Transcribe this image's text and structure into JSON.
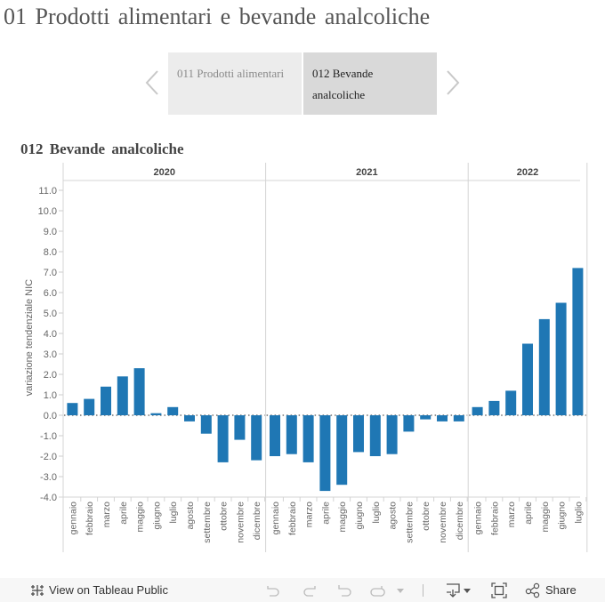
{
  "page": {
    "title": "01 Prodotti alimentari e bevande analcoliche"
  },
  "navigator": {
    "tabs": [
      {
        "label": "011 Prodotti alimentari",
        "active": false
      },
      {
        "label": "012 Bevande analcoliche",
        "active": true
      }
    ],
    "prev_icon": "chevron-left-icon",
    "next_icon": "chevron-right-icon"
  },
  "chart_title": "012 Bevande analcoliche",
  "chart_data": {
    "type": "bar",
    "title": "012 Bevande analcoliche",
    "xlabel": "",
    "ylabel": "variazione tendenziale NIC",
    "ylim": [
      -4.2,
      11.5
    ],
    "yticks": [
      11.0,
      10.0,
      9.0,
      8.0,
      7.0,
      6.0,
      5.0,
      4.0,
      3.0,
      2.0,
      1.0,
      0.0,
      -1.0,
      -2.0,
      -3.0,
      -4.0
    ],
    "ytick_labels": [
      "11.0",
      "10.0",
      "9.0",
      "8.0",
      "7.0",
      "6.0",
      "5.0",
      "4.0",
      "3.0",
      "2.0",
      "1.0",
      "0.0",
      "-1.0",
      "-2.0",
      "-3.0",
      "-4.0"
    ],
    "bar_color": "#1f77b4",
    "zero_line": "dotted",
    "grid": false,
    "panels": [
      {
        "year": "2020",
        "categories": [
          "gennaio",
          "febbraio",
          "marzo",
          "aprile",
          "maggio",
          "giugno",
          "luglio",
          "agosto",
          "settembre",
          "ottobre",
          "novembre",
          "dicembre"
        ],
        "values": [
          0.6,
          0.8,
          1.4,
          1.9,
          2.3,
          0.1,
          0.4,
          -0.3,
          -0.9,
          -2.3,
          -1.2,
          -2.2
        ]
      },
      {
        "year": "2021",
        "categories": [
          "gennaio",
          "febbraio",
          "marzo",
          "aprile",
          "maggio",
          "giugno",
          "luglio",
          "agosto",
          "settembre",
          "ottobre",
          "novembre",
          "dicembre"
        ],
        "values": [
          -2.0,
          -1.9,
          -2.3,
          -3.7,
          -3.4,
          -1.8,
          -2.0,
          -1.9,
          -0.8,
          -0.2,
          -0.3,
          -0.3
        ]
      },
      {
        "year": "2022",
        "categories": [
          "gennaio",
          "febbraio",
          "marzo",
          "aprile",
          "maggio",
          "giugno",
          "luglio"
        ],
        "values": [
          0.4,
          0.7,
          1.2,
          3.5,
          4.7,
          5.5,
          7.2
        ]
      }
    ]
  },
  "footer": {
    "view_label": "View on Tableau Public",
    "share_label": "Share",
    "icons": [
      "tableau-logo-icon",
      "undo-icon",
      "redo-icon",
      "revert-icon",
      "refresh-icon",
      "dropdown-icon",
      "download-icon",
      "fullscreen-icon",
      "share-icon"
    ]
  }
}
